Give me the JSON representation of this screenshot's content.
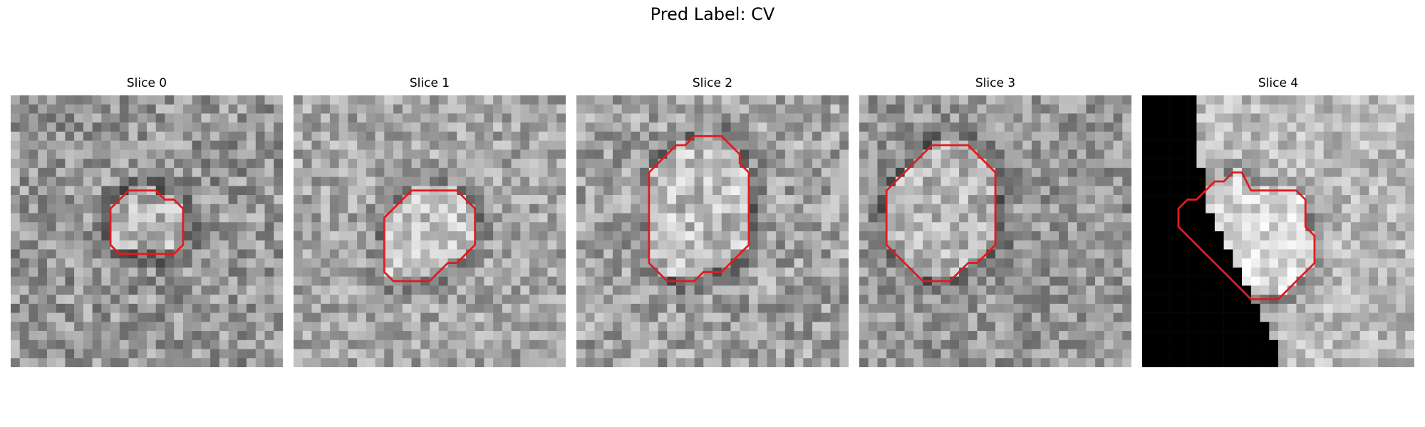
{
  "suptitle": "Pred Label: CV",
  "panels": [
    {
      "title": "Slice 0",
      "base_gray": 150,
      "noise": 50,
      "contour": [
        [
          13.0,
          10.5
        ],
        [
          14.0,
          10.5
        ],
        [
          15.0,
          10.5
        ],
        [
          16.0,
          10.5
        ],
        [
          17.0,
          11.5
        ],
        [
          18.0,
          11.5
        ],
        [
          19.0,
          12.5
        ],
        [
          19.0,
          13.5
        ],
        [
          19.0,
          14.5
        ],
        [
          19.0,
          15.5
        ],
        [
          19.0,
          16.5
        ],
        [
          18.0,
          17.5
        ],
        [
          17.0,
          17.5
        ],
        [
          16.0,
          17.5
        ],
        [
          15.0,
          17.5
        ],
        [
          14.0,
          17.5
        ],
        [
          13.0,
          17.5
        ],
        [
          12.0,
          17.5
        ],
        [
          11.0,
          16.5
        ],
        [
          11.0,
          15.5
        ],
        [
          11.0,
          14.5
        ],
        [
          11.0,
          13.5
        ],
        [
          11.0,
          12.5
        ],
        [
          12.0,
          11.5
        ],
        [
          13.0,
          10.5
        ]
      ]
    },
    {
      "title": "Slice 1",
      "base_gray": 165,
      "noise": 45,
      "contour": [
        [
          13.0,
          10.5
        ],
        [
          14.0,
          10.5
        ],
        [
          15.0,
          10.5
        ],
        [
          16.0,
          10.5
        ],
        [
          17.0,
          10.5
        ],
        [
          18.0,
          10.5
        ],
        [
          19.0,
          11.5
        ],
        [
          20.0,
          12.5
        ],
        [
          20.0,
          13.5
        ],
        [
          20.0,
          14.5
        ],
        [
          20.0,
          15.5
        ],
        [
          20.0,
          16.5
        ],
        [
          19.0,
          17.5
        ],
        [
          18.0,
          18.5
        ],
        [
          17.0,
          18.5
        ],
        [
          16.0,
          19.5
        ],
        [
          15.0,
          20.5
        ],
        [
          14.0,
          20.5
        ],
        [
          13.0,
          20.5
        ],
        [
          12.0,
          20.5
        ],
        [
          11.0,
          20.5
        ],
        [
          10.0,
          19.5
        ],
        [
          10.0,
          18.5
        ],
        [
          10.0,
          17.5
        ],
        [
          10.0,
          16.5
        ],
        [
          10.0,
          15.5
        ],
        [
          10.0,
          14.5
        ],
        [
          10.0,
          13.5
        ],
        [
          11.0,
          12.5
        ],
        [
          12.0,
          11.5
        ],
        [
          13.0,
          10.5
        ]
      ]
    },
    {
      "title": "Slice 2",
      "base_gray": 160,
      "noise": 50,
      "contour": [
        [
          13.0,
          4.5
        ],
        [
          14.0,
          4.5
        ],
        [
          15.0,
          4.5
        ],
        [
          16.0,
          4.5
        ],
        [
          17.0,
          5.5
        ],
        [
          18.0,
          6.5
        ],
        [
          18.0,
          7.5
        ],
        [
          19.0,
          8.5
        ],
        [
          19.0,
          9.5
        ],
        [
          19.0,
          10.5
        ],
        [
          19.0,
          11.5
        ],
        [
          19.0,
          12.5
        ],
        [
          19.0,
          13.5
        ],
        [
          19.0,
          14.5
        ],
        [
          19.0,
          15.5
        ],
        [
          19.0,
          16.5
        ],
        [
          18.0,
          17.5
        ],
        [
          17.0,
          18.5
        ],
        [
          16.0,
          19.5
        ],
        [
          15.0,
          19.5
        ],
        [
          14.0,
          19.5
        ],
        [
          13.0,
          20.5
        ],
        [
          12.0,
          20.5
        ],
        [
          11.0,
          20.5
        ],
        [
          10.0,
          20.5
        ],
        [
          9.0,
          19.5
        ],
        [
          8.0,
          18.5
        ],
        [
          8.0,
          17.5
        ],
        [
          8.0,
          16.5
        ],
        [
          8.0,
          15.5
        ],
        [
          8.0,
          14.5
        ],
        [
          8.0,
          13.5
        ],
        [
          8.0,
          12.5
        ],
        [
          8.0,
          11.5
        ],
        [
          8.0,
          10.5
        ],
        [
          8.0,
          9.5
        ],
        [
          8.0,
          8.5
        ],
        [
          9.0,
          7.5
        ],
        [
          10.0,
          6.5
        ],
        [
          11.0,
          5.5
        ],
        [
          12.0,
          5.5
        ],
        [
          13.0,
          4.5
        ]
      ]
    },
    {
      "title": "Slice 3",
      "base_gray": 150,
      "noise": 45,
      "contour": [
        [
          9.0,
          5.5
        ],
        [
          10.0,
          5.5
        ],
        [
          11.0,
          5.5
        ],
        [
          12.0,
          5.5
        ],
        [
          13.0,
          6.5
        ],
        [
          14.0,
          7.5
        ],
        [
          15.0,
          8.5
        ],
        [
          15.0,
          9.5
        ],
        [
          15.0,
          10.5
        ],
        [
          15.0,
          11.5
        ],
        [
          15.0,
          12.5
        ],
        [
          15.0,
          13.5
        ],
        [
          15.0,
          14.5
        ],
        [
          15.0,
          15.5
        ],
        [
          15.0,
          16.5
        ],
        [
          14.0,
          17.5
        ],
        [
          13.0,
          18.5
        ],
        [
          12.0,
          18.5
        ],
        [
          11.0,
          19.5
        ],
        [
          10.0,
          20.5
        ],
        [
          9.0,
          20.5
        ],
        [
          8.0,
          20.5
        ],
        [
          7.0,
          20.5
        ],
        [
          6.0,
          19.5
        ],
        [
          5.0,
          18.5
        ],
        [
          4.0,
          17.5
        ],
        [
          3.0,
          16.5
        ],
        [
          3.0,
          15.5
        ],
        [
          3.0,
          14.5
        ],
        [
          3.0,
          13.5
        ],
        [
          3.0,
          12.5
        ],
        [
          3.0,
          11.5
        ],
        [
          3.0,
          10.5
        ],
        [
          4.0,
          9.5
        ],
        [
          5.0,
          8.5
        ],
        [
          6.0,
          7.5
        ],
        [
          7.0,
          6.5
        ],
        [
          8.0,
          5.5
        ],
        [
          9.0,
          5.5
        ]
      ]
    },
    {
      "title": "Slice 4",
      "base_gray": 185,
      "noise": 40,
      "contour": [
        [
          13.0,
          10.5
        ],
        [
          14.0,
          10.5
        ],
        [
          15.0,
          10.5
        ],
        [
          16.0,
          10.5
        ],
        [
          17.0,
          10.5
        ],
        [
          18.0,
          11.5
        ],
        [
          18.0,
          12.5
        ],
        [
          18.0,
          13.5
        ],
        [
          18.0,
          14.5
        ],
        [
          19.0,
          15.5
        ],
        [
          19.0,
          16.5
        ],
        [
          19.0,
          17.5
        ],
        [
          19.0,
          18.5
        ],
        [
          18.0,
          19.5
        ],
        [
          17.0,
          20.5
        ],
        [
          16.0,
          21.5
        ],
        [
          15.0,
          22.5
        ],
        [
          14.0,
          22.5
        ],
        [
          13.0,
          22.5
        ],
        [
          12.0,
          22.5
        ],
        [
          11.0,
          21.5
        ],
        [
          10.0,
          20.5
        ],
        [
          9.0,
          19.5
        ],
        [
          8.0,
          18.5
        ],
        [
          7.0,
          17.5
        ],
        [
          6.0,
          16.5
        ],
        [
          5.0,
          15.5
        ],
        [
          4.0,
          14.5
        ],
        [
          4.0,
          13.5
        ],
        [
          4.0,
          12.5
        ],
        [
          5.0,
          11.5
        ],
        [
          6.0,
          11.5
        ],
        [
          7.0,
          10.5
        ],
        [
          8.0,
          9.5
        ],
        [
          9.0,
          9.5
        ],
        [
          10.0,
          8.5
        ],
        [
          11.0,
          8.5
        ],
        [
          12.0,
          10.5
        ],
        [
          13.0,
          10.5
        ]
      ]
    }
  ],
  "colors": {
    "contour": "#e31a1c"
  }
}
